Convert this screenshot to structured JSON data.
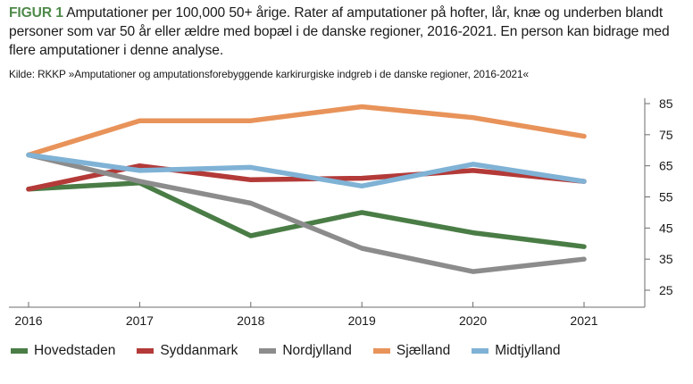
{
  "header": {
    "fig_label": "FIGUR 1",
    "title": " Amputationer per 100,000 50+ årige. Rater af amputationer på hofter, lår, knæ og underben blandt personer som var 50 år eller ældre med bopæl i de danske regioner, 2016-2021. En person kan bidrage med flere amputationer i denne analyse.",
    "source": "Kilde: RKKP »Amputationer og amputationsforebyggende karkirurgiske indgreb i de danske regioner, 2016-2021«"
  },
  "chart_data": {
    "type": "line",
    "x": [
      "2016",
      "2017",
      "2018",
      "2019",
      "2020",
      "2021"
    ],
    "ylim": [
      20,
      87
    ],
    "yticks": [
      25,
      35,
      45,
      55,
      65,
      75,
      85
    ],
    "y_axis_position": "right",
    "grid": false,
    "legend_position": "bottom",
    "series": [
      {
        "name": "Hovedstaden",
        "color": "#4a7d46",
        "values": [
          57.5,
          59.5,
          42.5,
          50,
          43.5,
          39
        ]
      },
      {
        "name": "Syddanmark",
        "color": "#b33a38",
        "values": [
          57.5,
          65,
          60.5,
          61,
          63.5,
          60
        ]
      },
      {
        "name": "Nordjylland",
        "color": "#8c8c8c",
        "values": [
          68.5,
          60,
          53,
          38.5,
          31,
          35
        ]
      },
      {
        "name": "Sjælland",
        "color": "#e8935a",
        "values": [
          68.5,
          79.5,
          79.5,
          84,
          80.5,
          74.5
        ]
      },
      {
        "name": "Midtjylland",
        "color": "#7fb2d5",
        "values": [
          68.5,
          63.5,
          64.5,
          58.5,
          65.5,
          60
        ]
      }
    ]
  }
}
